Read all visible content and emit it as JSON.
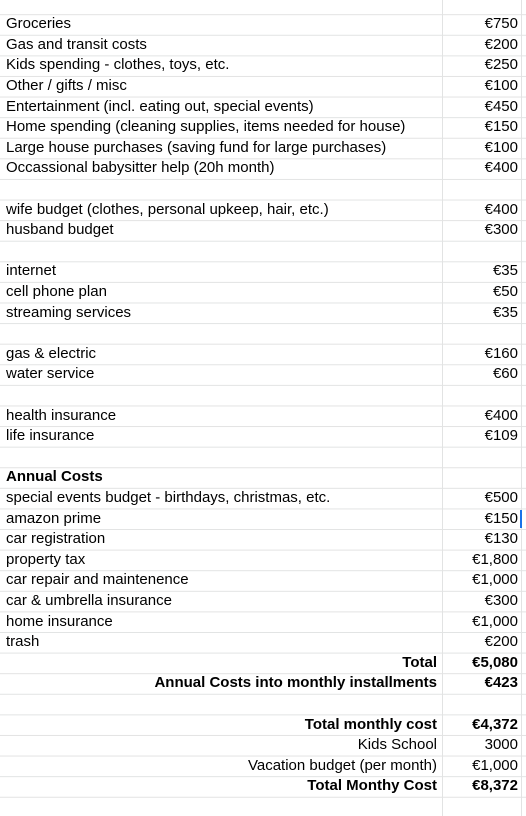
{
  "sections": [
    {
      "top": 14.2,
      "rows": [
        {
          "label": "Groceries",
          "value": "€750"
        },
        {
          "label": "Gas and transit costs",
          "value": "€200"
        },
        {
          "label": "Kids spending - clothes, toys, etc.",
          "value": "€250"
        },
        {
          "label": "Other / gifts / misc",
          "value": "€100"
        },
        {
          "label": "Entertainment (incl. eating out, special events)",
          "value": "€450"
        },
        {
          "label": "Home spending (cleaning supplies, items needed for house)",
          "value": "€150"
        },
        {
          "label": "Large house purchases (saving fund for large purchases)",
          "value": "€100"
        },
        {
          "label": "Occassional babysitter help (20h month)",
          "value": "€400"
        }
      ]
    },
    {
      "top": 199.6,
      "rows": [
        {
          "label": "wife budget (clothes, personal upkeep, hair, etc.)",
          "value": "€400"
        },
        {
          "label": "husband budget",
          "value": "€300"
        }
      ]
    },
    {
      "top": 261.4,
      "rows": [
        {
          "label": "internet",
          "value": "€35"
        },
        {
          "label": "cell phone plan",
          "value": "€50"
        },
        {
          "label": "streaming services",
          "value": "€35"
        }
      ]
    },
    {
      "top": 343.8,
      "rows": [
        {
          "label": "gas & electric",
          "value": "€160"
        },
        {
          "label": "water service",
          "value": "€60"
        }
      ]
    },
    {
      "top": 405.6,
      "rows": [
        {
          "label": "health insurance",
          "value": "€400"
        },
        {
          "label": "life insurance",
          "value": "€109"
        }
      ]
    },
    {
      "top": 467.4,
      "rows": [
        {
          "label": "Annual Costs",
          "value": "",
          "bold": true
        },
        {
          "label": "special events budget - birthdays, christmas, etc.",
          "value": "€500"
        },
        {
          "label": "amazon prime",
          "value": "€150"
        },
        {
          "label": "car registration",
          "value": "€130"
        },
        {
          "label": "property tax",
          "value": "€1,800"
        },
        {
          "label": "car repair and maintenence",
          "value": "€1,000"
        },
        {
          "label": "car & umbrella insurance",
          "value": "€300"
        },
        {
          "label": "home insurance",
          "value": "€1,000"
        },
        {
          "label": "trash",
          "value": "€200"
        },
        {
          "label": "Total",
          "value": "€5,080",
          "bold": true,
          "right": true
        },
        {
          "label": "Annual Costs into monthly installments",
          "value": "€423",
          "bold": true,
          "right": true
        }
      ]
    },
    {
      "top": 714.6,
      "rows": [
        {
          "label": "Total monthly cost",
          "value": "€4,372",
          "bold": true,
          "right": true
        },
        {
          "label": "Kids School",
          "value": "3000",
          "right": true
        },
        {
          "label": "Vacation budget (per month)",
          "value": "€1,000",
          "right": true
        },
        {
          "label": "Total Monthy Cost",
          "value": "€8,372",
          "bold": true,
          "right": true
        }
      ]
    }
  ]
}
